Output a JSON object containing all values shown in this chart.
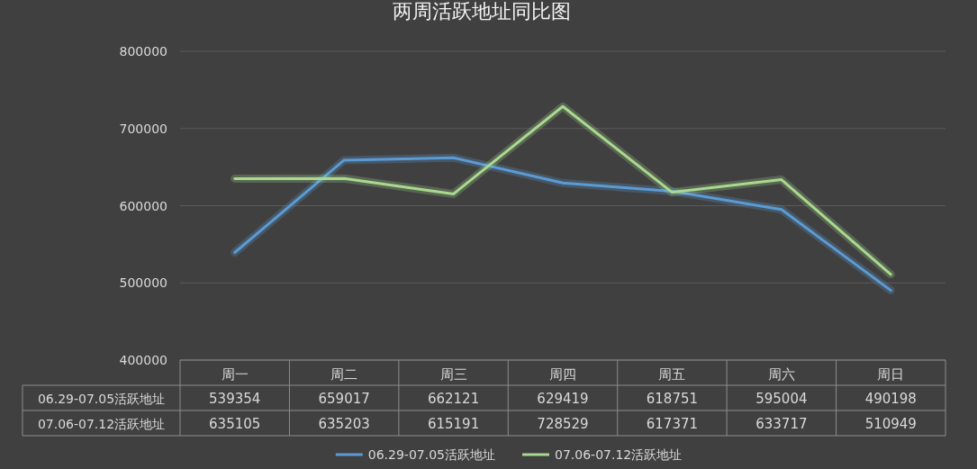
{
  "chart_data": {
    "type": "line",
    "title": "两周活跃地址同比图",
    "categories": [
      "周一",
      "周二",
      "周三",
      "周四",
      "周五",
      "周六",
      "周日"
    ],
    "series": [
      {
        "name": "06.29-07.05活跃地址",
        "color": "#5b9bd5",
        "values": [
          539354,
          659017,
          662121,
          629419,
          618751,
          595004,
          490198
        ]
      },
      {
        "name": "07.06-07.12活跃地址",
        "color": "#a9d98e",
        "values": [
          635105,
          635203,
          615191,
          728529,
          617371,
          633717,
          510949
        ]
      }
    ],
    "ylim": [
      400000,
      800000
    ],
    "yticks": [
      400000,
      500000,
      600000,
      700000,
      800000
    ],
    "grid": "y",
    "legend": "bottom",
    "data_labels": true
  }
}
